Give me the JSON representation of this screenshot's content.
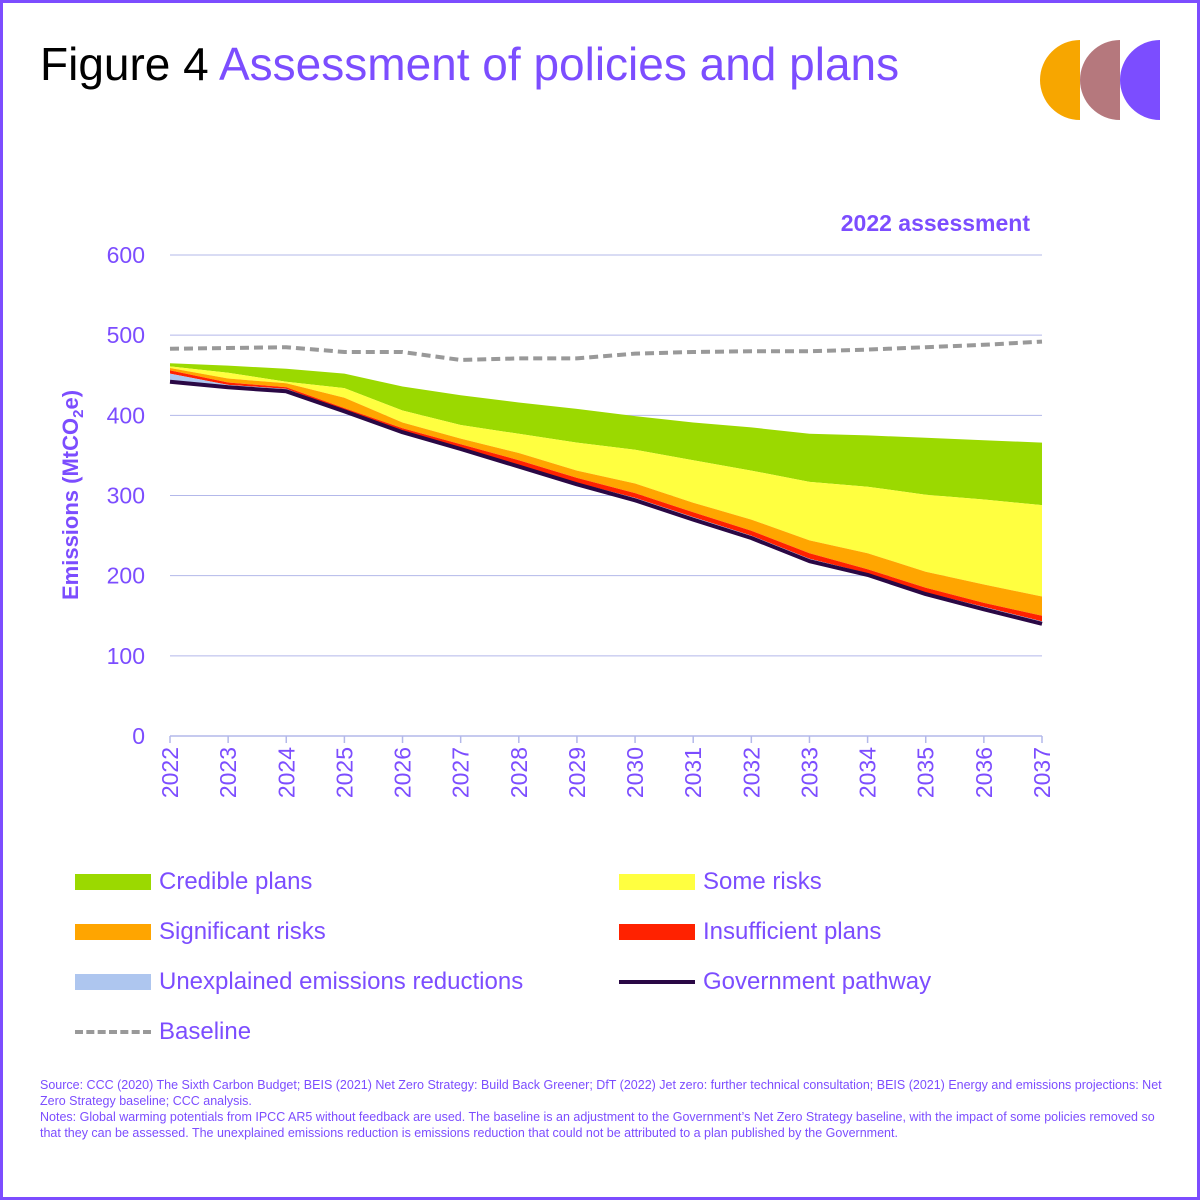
{
  "figure": {
    "label": "Figure 4",
    "title": "Assessment of policies and plans"
  },
  "chart_data": {
    "type": "area",
    "subtitle": "2022 assessment",
    "ylabel_prefix": "Emissions (MtCO",
    "ylabel_sub": "2",
    "ylabel_suffix": "e)",
    "ylim": [
      0,
      600
    ],
    "yticks": [
      0,
      100,
      200,
      300,
      400,
      500,
      600
    ],
    "categories": [
      "2022",
      "2023",
      "2024",
      "2025",
      "2026",
      "2027",
      "2028",
      "2029",
      "2030",
      "2031",
      "2032",
      "2033",
      "2034",
      "2035",
      "2036",
      "2037"
    ],
    "baseline": [
      483,
      484,
      485,
      479,
      479,
      469,
      471,
      471,
      477,
      479,
      480,
      480,
      482,
      485,
      488,
      492
    ],
    "stack_tops": {
      "credible_plans": [
        465,
        462,
        458,
        452,
        436,
        425,
        416,
        408,
        399,
        391,
        385,
        377,
        375,
        372,
        369,
        366
      ],
      "some_risks": [
        461,
        453,
        442,
        434,
        406,
        388,
        377,
        366,
        357,
        344,
        331,
        317,
        311,
        301,
        295,
        288
      ],
      "significant_risks": [
        459,
        446,
        440,
        422,
        391,
        371,
        353,
        331,
        315,
        291,
        270,
        244,
        228,
        205,
        189,
        174
      ],
      "insufficient_plans": [
        456,
        441,
        435,
        409,
        384,
        364,
        344,
        322,
        303,
        279,
        256,
        228,
        208,
        185,
        166,
        150
      ],
      "unexplained_reductions": [
        452,
        438,
        433,
        406,
        381,
        360,
        338,
        316,
        297,
        273,
        250,
        221,
        203,
        179,
        161,
        143
      ]
    },
    "government_pathway": [
      442,
      435,
      430,
      405,
      379,
      358,
      336,
      314,
      294,
      270,
      247,
      218,
      201,
      177,
      158,
      140
    ],
    "colors": {
      "credible_plans": "#9bd900",
      "some_risks": "#ffff40",
      "significant_risks": "#ffa500",
      "insufficient_plans": "#ff2200",
      "unexplained_reductions": "#aec6ef",
      "government_pathway": "#2a0845",
      "baseline": "#999999",
      "gridline": "#b3b8ea",
      "accent": "#7c4dff"
    }
  },
  "legend": [
    {
      "key": "credible_plans",
      "label": "Credible plans",
      "kind": "area"
    },
    {
      "key": "some_risks",
      "label": "Some risks",
      "kind": "area"
    },
    {
      "key": "significant_risks",
      "label": "Significant risks",
      "kind": "area"
    },
    {
      "key": "insufficient_plans",
      "label": "Insufficient plans",
      "kind": "area"
    },
    {
      "key": "unexplained_reductions",
      "label": "Unexplained emissions reductions",
      "kind": "area"
    },
    {
      "key": "government_pathway",
      "label": "Government pathway",
      "kind": "line"
    },
    {
      "key": "baseline",
      "label": "Baseline",
      "kind": "dashed"
    }
  ],
  "notes": {
    "source": "Source: CCC (2020) The Sixth Carbon Budget; BEIS (2021) Net Zero Strategy: Build Back Greener; DfT (2022) Jet zero: further technical consultation; BEIS (2021) Energy and emissions projections: Net Zero Strategy baseline; CCC analysis.",
    "notes": "Notes: Global warming potentials from IPCC AR5 without feedback are used. The baseline is an adjustment to the Government’s Net Zero Strategy baseline, with the impact of some policies removed so that they can be assessed. The unexplained emissions reduction is emissions reduction that could not be attributed to a plan published by the Government."
  }
}
